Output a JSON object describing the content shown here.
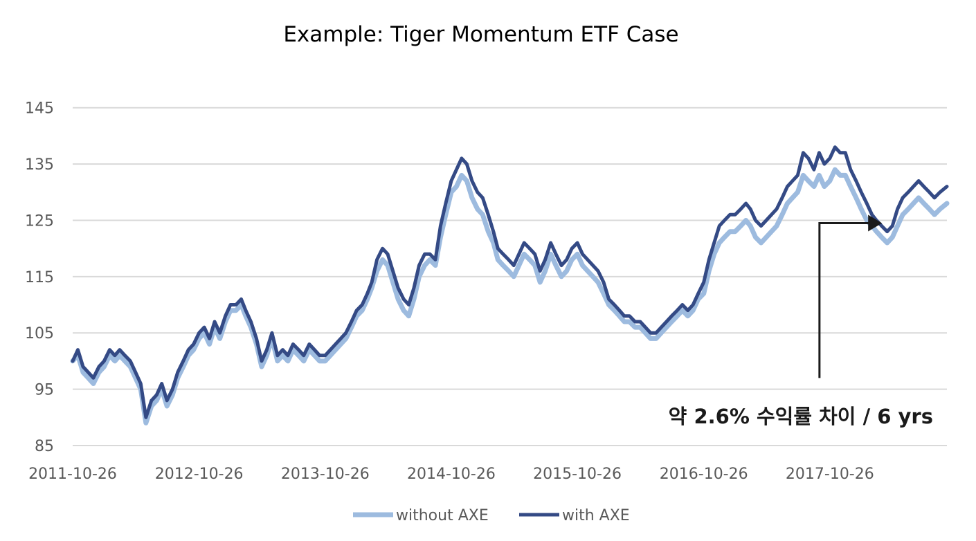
{
  "chart_data": {
    "type": "line",
    "title": "Example: Tiger Momentum ETF Case",
    "xlabel": "",
    "ylabel": "",
    "ylim": [
      85,
      150
    ],
    "y_ticks": [
      85,
      95,
      105,
      115,
      125,
      135,
      145
    ],
    "x_tick_labels": [
      "2011-10-26",
      "2012-10-26",
      "2013-10-26",
      "2014-10-26",
      "2015-10-26",
      "2016-10-26",
      "2017-10-26"
    ],
    "x_range": [
      "2011-10-26",
      "2018-09-30"
    ],
    "grid": true,
    "legend_position": "bottom",
    "annotation": {
      "text": "약 2.6% 수익률 차이 / 6 yrs",
      "arrow_start": [
        "2017-09-26",
        97
      ],
      "arrow_corner": [
        "2017-09-26",
        124.5
      ],
      "arrow_end": [
        "2018-03-26",
        124.5
      ]
    },
    "series": [
      {
        "name": "without AXE",
        "color": "#9dbbdf",
        "x": [
          "2011-10-26",
          "2011-11-10",
          "2011-11-25",
          "2011-12-10",
          "2011-12-25",
          "2012-01-10",
          "2012-01-25",
          "2012-02-10",
          "2012-02-25",
          "2012-03-10",
          "2012-03-25",
          "2012-04-10",
          "2012-04-25",
          "2012-05-10",
          "2012-05-25",
          "2012-06-10",
          "2012-06-25",
          "2012-07-10",
          "2012-07-25",
          "2012-08-10",
          "2012-08-25",
          "2012-09-10",
          "2012-09-25",
          "2012-10-10",
          "2012-10-26",
          "2012-11-10",
          "2012-11-25",
          "2012-12-10",
          "2012-12-25",
          "2013-01-10",
          "2013-01-25",
          "2013-02-10",
          "2013-02-25",
          "2013-03-10",
          "2013-03-25",
          "2013-04-10",
          "2013-04-25",
          "2013-05-10",
          "2013-05-25",
          "2013-06-10",
          "2013-06-25",
          "2013-07-10",
          "2013-07-25",
          "2013-08-10",
          "2013-08-25",
          "2013-09-10",
          "2013-09-25",
          "2013-10-10",
          "2013-10-26",
          "2013-11-10",
          "2013-11-25",
          "2013-12-10",
          "2013-12-25",
          "2014-01-10",
          "2014-01-25",
          "2014-02-10",
          "2014-02-25",
          "2014-03-10",
          "2014-03-25",
          "2014-04-10",
          "2014-04-25",
          "2014-05-10",
          "2014-05-25",
          "2014-06-10",
          "2014-06-25",
          "2014-07-10",
          "2014-07-25",
          "2014-08-10",
          "2014-08-25",
          "2014-09-10",
          "2014-09-25",
          "2014-10-10",
          "2014-10-26",
          "2014-11-10",
          "2014-11-25",
          "2014-12-10",
          "2014-12-25",
          "2015-01-10",
          "2015-01-25",
          "2015-02-10",
          "2015-02-25",
          "2015-03-10",
          "2015-03-25",
          "2015-04-10",
          "2015-04-25",
          "2015-05-10",
          "2015-05-25",
          "2015-06-10",
          "2015-06-25",
          "2015-07-10",
          "2015-07-25",
          "2015-08-10",
          "2015-08-25",
          "2015-09-10",
          "2015-09-25",
          "2015-10-10",
          "2015-10-26",
          "2015-11-10",
          "2015-11-25",
          "2015-12-10",
          "2015-12-25",
          "2016-01-10",
          "2016-01-25",
          "2016-02-10",
          "2016-02-25",
          "2016-03-10",
          "2016-03-25",
          "2016-04-10",
          "2016-04-25",
          "2016-05-10",
          "2016-05-25",
          "2016-06-10",
          "2016-06-25",
          "2016-07-10",
          "2016-07-25",
          "2016-08-10",
          "2016-08-25",
          "2016-09-10",
          "2016-09-25",
          "2016-10-10",
          "2016-10-26",
          "2016-11-10",
          "2016-11-25",
          "2016-12-10",
          "2016-12-25",
          "2017-01-10",
          "2017-01-25",
          "2017-02-10",
          "2017-02-25",
          "2017-03-10",
          "2017-03-25",
          "2017-04-10",
          "2017-04-25",
          "2017-05-10",
          "2017-05-25",
          "2017-06-10",
          "2017-06-25",
          "2017-07-10",
          "2017-07-25",
          "2017-08-10",
          "2017-08-25",
          "2017-09-10",
          "2017-09-25",
          "2017-10-10",
          "2017-10-26",
          "2017-11-10",
          "2017-11-25",
          "2017-12-10",
          "2017-12-25",
          "2018-01-10",
          "2018-01-25",
          "2018-02-10",
          "2018-02-25",
          "2018-03-10",
          "2018-03-25",
          "2018-04-10",
          "2018-04-25",
          "2018-05-10",
          "2018-05-25",
          "2018-06-10",
          "2018-06-25",
          "2018-07-10",
          "2018-07-25",
          "2018-08-10",
          "2018-08-25",
          "2018-09-10",
          "2018-09-30"
        ],
        "values": [
          100,
          101,
          98,
          97,
          96,
          98,
          99,
          101,
          100,
          101,
          100,
          99,
          97,
          95,
          89,
          92,
          93,
          95,
          92,
          94,
          97,
          99,
          101,
          102,
          104,
          105,
          103,
          106,
          104,
          107,
          109,
          109,
          110,
          108,
          106,
          103,
          99,
          101,
          104,
          100,
          101,
          100,
          102,
          101,
          100,
          102,
          101,
          100,
          100,
          101,
          102,
          103,
          104,
          106,
          108,
          109,
          111,
          113,
          116,
          118,
          117,
          114,
          111,
          109,
          108,
          111,
          115,
          117,
          118,
          117,
          122,
          126,
          130,
          131,
          133,
          132,
          129,
          127,
          126,
          123,
          121,
          118,
          117,
          116,
          115,
          117,
          119,
          118,
          117,
          114,
          116,
          119,
          117,
          115,
          116,
          118,
          119,
          117,
          116,
          115,
          114,
          112,
          110,
          109,
          108,
          107,
          107,
          106,
          106,
          105,
          104,
          104,
          105,
          106,
          107,
          108,
          109,
          108,
          109,
          111,
          112,
          116,
          119,
          121,
          122,
          123,
          123,
          124,
          125,
          124,
          122,
          121,
          122,
          123,
          124,
          126,
          128,
          129,
          130,
          133,
          132,
          131,
          133,
          131,
          132,
          134,
          133,
          133,
          131,
          129,
          127,
          125,
          124,
          123,
          122,
          121,
          122,
          124,
          126,
          127,
          128,
          129,
          128,
          127,
          126,
          127,
          128
        ]
      },
      {
        "name": "with AXE",
        "color": "#344a85",
        "x": [
          "2011-10-26",
          "2011-11-10",
          "2011-11-25",
          "2011-12-10",
          "2011-12-25",
          "2012-01-10",
          "2012-01-25",
          "2012-02-10",
          "2012-02-25",
          "2012-03-10",
          "2012-03-25",
          "2012-04-10",
          "2012-04-25",
          "2012-05-10",
          "2012-05-25",
          "2012-06-10",
          "2012-06-25",
          "2012-07-10",
          "2012-07-25",
          "2012-08-10",
          "2012-08-25",
          "2012-09-10",
          "2012-09-25",
          "2012-10-10",
          "2012-10-26",
          "2012-11-10",
          "2012-11-25",
          "2012-12-10",
          "2012-12-25",
          "2013-01-10",
          "2013-01-25",
          "2013-02-10",
          "2013-02-25",
          "2013-03-10",
          "2013-03-25",
          "2013-04-10",
          "2013-04-25",
          "2013-05-10",
          "2013-05-25",
          "2013-06-10",
          "2013-06-25",
          "2013-07-10",
          "2013-07-25",
          "2013-08-10",
          "2013-08-25",
          "2013-09-10",
          "2013-09-25",
          "2013-10-10",
          "2013-10-26",
          "2013-11-10",
          "2013-11-25",
          "2013-12-10",
          "2013-12-25",
          "2014-01-10",
          "2014-01-25",
          "2014-02-10",
          "2014-02-25",
          "2014-03-10",
          "2014-03-25",
          "2014-04-10",
          "2014-04-25",
          "2014-05-10",
          "2014-05-25",
          "2014-06-10",
          "2014-06-25",
          "2014-07-10",
          "2014-07-25",
          "2014-08-10",
          "2014-08-25",
          "2014-09-10",
          "2014-09-25",
          "2014-10-10",
          "2014-10-26",
          "2014-11-10",
          "2014-11-25",
          "2014-12-10",
          "2014-12-25",
          "2015-01-10",
          "2015-01-25",
          "2015-02-10",
          "2015-02-25",
          "2015-03-10",
          "2015-03-25",
          "2015-04-10",
          "2015-04-25",
          "2015-05-10",
          "2015-05-25",
          "2015-06-10",
          "2015-06-25",
          "2015-07-10",
          "2015-07-25",
          "2015-08-10",
          "2015-08-25",
          "2015-09-10",
          "2015-09-25",
          "2015-10-10",
          "2015-10-26",
          "2015-11-10",
          "2015-11-25",
          "2015-12-10",
          "2015-12-25",
          "2016-01-10",
          "2016-01-25",
          "2016-02-10",
          "2016-02-25",
          "2016-03-10",
          "2016-03-25",
          "2016-04-10",
          "2016-04-25",
          "2016-05-10",
          "2016-05-25",
          "2016-06-10",
          "2016-06-25",
          "2016-07-10",
          "2016-07-25",
          "2016-08-10",
          "2016-08-25",
          "2016-09-10",
          "2016-09-25",
          "2016-10-10",
          "2016-10-26",
          "2016-11-10",
          "2016-11-25",
          "2016-12-10",
          "2016-12-25",
          "2017-01-10",
          "2017-01-25",
          "2017-02-10",
          "2017-02-25",
          "2017-03-10",
          "2017-03-25",
          "2017-04-10",
          "2017-04-25",
          "2017-05-10",
          "2017-05-25",
          "2017-06-10",
          "2017-06-25",
          "2017-07-10",
          "2017-07-25",
          "2017-08-10",
          "2017-08-25",
          "2017-09-10",
          "2017-09-25",
          "2017-10-10",
          "2017-10-26",
          "2017-11-10",
          "2017-11-25",
          "2017-12-10",
          "2017-12-25",
          "2018-01-10",
          "2018-01-25",
          "2018-02-10",
          "2018-02-25",
          "2018-03-10",
          "2018-03-25",
          "2018-04-10",
          "2018-04-25",
          "2018-05-10",
          "2018-05-25",
          "2018-06-10",
          "2018-06-25",
          "2018-07-10",
          "2018-07-25",
          "2018-08-10",
          "2018-08-25",
          "2018-09-10",
          "2018-09-30"
        ],
        "values": [
          100,
          102,
          99,
          98,
          97,
          99,
          100,
          102,
          101,
          102,
          101,
          100,
          98,
          96,
          90,
          93,
          94,
          96,
          93,
          95,
          98,
          100,
          102,
          103,
          105,
          106,
          104,
          107,
          105,
          108,
          110,
          110,
          111,
          109,
          107,
          104,
          100,
          102,
          105,
          101,
          102,
          101,
          103,
          102,
          101,
          103,
          102,
          101,
          101,
          102,
          103,
          104,
          105,
          107,
          109,
          110,
          112,
          114,
          118,
          120,
          119,
          116,
          113,
          111,
          110,
          113,
          117,
          119,
          119,
          118,
          124,
          128,
          132,
          134,
          136,
          135,
          132,
          130,
          129,
          126,
          123,
          120,
          119,
          118,
          117,
          119,
          121,
          120,
          119,
          116,
          118,
          121,
          119,
          117,
          118,
          120,
          121,
          119,
          118,
          117,
          116,
          114,
          111,
          110,
          109,
          108,
          108,
          107,
          107,
          106,
          105,
          105,
          106,
          107,
          108,
          109,
          110,
          109,
          110,
          112,
          114,
          118,
          121,
          124,
          125,
          126,
          126,
          127,
          128,
          127,
          125,
          124,
          125,
          126,
          127,
          129,
          131,
          132,
          133,
          137,
          136,
          134,
          137,
          135,
          136,
          138,
          137,
          137,
          134,
          132,
          130,
          128,
          126,
          125,
          124,
          123,
          124,
          127,
          129,
          130,
          131,
          132,
          131,
          130,
          129,
          130,
          131
        ]
      }
    ]
  }
}
